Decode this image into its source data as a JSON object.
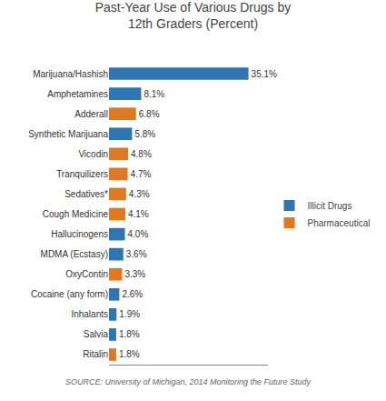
{
  "chart_data": {
    "type": "bar",
    "orientation": "horizontal",
    "title": "Past-Year Use of Various Drugs by\n12th Graders (Percent)",
    "categories": [
      "Ritalin",
      "Salvia",
      "Inhalants",
      "Cocaine (any form)",
      "OxyContin",
      "MDMA (Ecstasy)",
      "Hallucinogens",
      "Cough Medicine",
      "Sedatives*",
      "Tranquilizers",
      "Vicodin",
      "Synthetic Marijuana",
      "Adderall",
      "Amphetamines",
      "Marijuana/Hashish"
    ],
    "series": [
      {
        "name": "Illicit Drugs",
        "color": "#2E75B6",
        "values": [
          null,
          1.8,
          1.9,
          2.6,
          null,
          3.6,
          4.0,
          null,
          null,
          null,
          null,
          5.8,
          null,
          8.1,
          35.1
        ],
        "value_labels": [
          null,
          "1.8%",
          "1.9%",
          "2.6%",
          null,
          "3.6%",
          "4.0%",
          null,
          null,
          null,
          null,
          "5.8%",
          null,
          "8.1%",
          "35.1%"
        ]
      },
      {
        "name": "Pharmaceutical",
        "color": "#E07820",
        "values": [
          1.8,
          null,
          null,
          null,
          3.3,
          null,
          null,
          4.1,
          4.3,
          4.7,
          4.8,
          null,
          6.8,
          null,
          null
        ],
        "value_labels": [
          "1.8%",
          null,
          null,
          null,
          "3.3%",
          null,
          null,
          "4.1%",
          "4.3%",
          "4.7%",
          "4.8%",
          null,
          "6.8%",
          null,
          null
        ]
      }
    ],
    "xlim": [
      0,
      40
    ],
    "tick_labels": "y",
    "data_labels": true,
    "legend": "right",
    "grid": false,
    "annotations": [
      "SOURCE: University of Michigan, 2014 Monitoring the Future Study"
    ]
  }
}
